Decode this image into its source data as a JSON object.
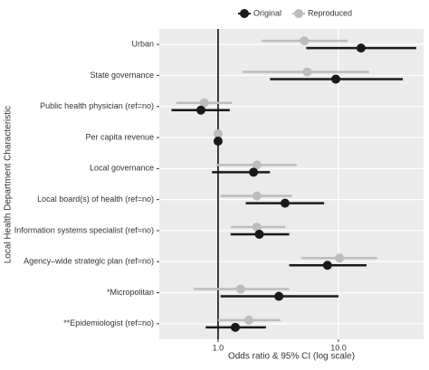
{
  "chart_data": {
    "type": "forest",
    "x_label": "Odds ratio & 95% CI (log scale)",
    "y_label": "Local Health Department Characteristic",
    "log_x": true,
    "grid": true,
    "legend_position": "top",
    "reference_line": 1,
    "categories": [
      "Urban",
      "State governance",
      "Public health physician (ref=no)",
      "Per capita revenue",
      "Local governance",
      "Local board(s) of health (ref=no)",
      "Information systems specialist (ref=no)",
      "Agency–wide strategic plan (ref=no)",
      "*Micropolitan",
      "**Epidemiologist (ref=no)"
    ],
    "series": [
      {
        "name": "Original",
        "color": "#1a1a1a",
        "values": [
          15.4,
          9.5,
          0.72,
          1.0,
          1.97,
          3.6,
          2.2,
          8.1,
          3.2,
          1.39
        ],
        "lower": [
          5.4,
          2.7,
          0.41,
          0.98,
          0.89,
          1.7,
          1.27,
          3.9,
          1.05,
          0.79
        ],
        "upper": [
          44.3,
          34.2,
          1.25,
          1.02,
          2.7,
          7.6,
          3.9,
          17.1,
          10.0,
          2.5
        ]
      },
      {
        "name": "Reproduced",
        "color": "#bdbdbd",
        "values": [
          5.2,
          5.5,
          0.77,
          1.0,
          2.1,
          2.1,
          2.1,
          10.2,
          1.54,
          1.8
        ],
        "lower": [
          2.3,
          1.6,
          0.45,
          0.97,
          0.97,
          1.05,
          1.27,
          4.9,
          0.63,
          1.0
        ],
        "upper": [
          11.9,
          18.0,
          1.3,
          1.03,
          4.5,
          4.1,
          3.6,
          21.0,
          3.9,
          3.3
        ]
      }
    ],
    "xlim": [
      0.325,
      50.9
    ],
    "xticks": [
      {
        "value": 1,
        "label": "1.0"
      },
      {
        "value": 10,
        "label": "10.0"
      }
    ]
  }
}
